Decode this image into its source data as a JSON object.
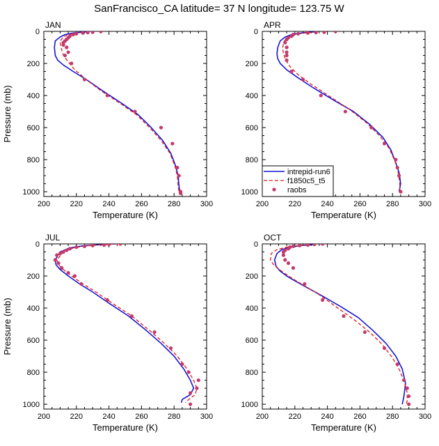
{
  "title": "SanFrancisco_CA  latitude= 37 N longitude= 123.75 W",
  "legend": {
    "entries": [
      {
        "label": "intrepid-run6",
        "color": "#1414d4",
        "style": "solid"
      },
      {
        "label": "f1850c5_t5",
        "color": "#e01818",
        "style": "dashed"
      },
      {
        "label": "raobs",
        "color": "#c23a6b",
        "style": "dots"
      }
    ]
  },
  "chart_data": [
    {
      "type": "line",
      "panel": "JAN",
      "xlabel": "Temperature (K)",
      "ylabel": "Pressure (mb)",
      "xlim": [
        200,
        300
      ],
      "ylim": [
        0,
        1030
      ],
      "y_inverted": true,
      "xticks": [
        200,
        220,
        240,
        260,
        280,
        300
      ],
      "yticks": [
        0,
        200,
        400,
        600,
        800,
        1000
      ],
      "series": [
        {
          "name": "intrepid-run6",
          "x": [
            226,
            218,
            213,
            210,
            207,
            206.5,
            207,
            208.5,
            212,
            218,
            226,
            236,
            248,
            258,
            266,
            273,
            278,
            281,
            282.5,
            283,
            283.5
          ],
          "y": [
            3,
            10,
            20,
            35,
            60,
            100,
            150,
            180,
            210,
            250,
            300,
            370,
            450,
            520,
            600,
            680,
            760,
            840,
            900,
            960,
            1000
          ]
        },
        {
          "name": "f1850c5_t5",
          "x": [
            228,
            220,
            215,
            212,
            210,
            210.5,
            212,
            215,
            219,
            226,
            235,
            247,
            257,
            265,
            272,
            277.5,
            280.5,
            282,
            282.5,
            283
          ],
          "y": [
            3,
            10,
            20,
            35,
            60,
            100,
            150,
            190,
            240,
            300,
            370,
            450,
            520,
            600,
            680,
            760,
            840,
            900,
            960,
            1000
          ]
        },
        {
          "name": "raobs",
          "x": [
            235,
            230,
            227,
            224,
            220,
            218,
            216,
            215,
            214,
            213,
            212,
            212,
            214,
            215,
            213,
            217,
            225,
            239,
            256,
            272,
            279,
            282,
            283,
            284,
            284
          ],
          "y": [
            0,
            5,
            7,
            10,
            15,
            20,
            30,
            40,
            50,
            60,
            70,
            85,
            100,
            130,
            150,
            200,
            300,
            400,
            500,
            600,
            700,
            850,
            900,
            1000,
            1010
          ]
        }
      ]
    },
    {
      "type": "line",
      "panel": "APR",
      "xlabel": "Temperature (K)",
      "ylabel": "",
      "xlim": [
        200,
        300
      ],
      "ylim": [
        0,
        1030
      ],
      "y_inverted": true,
      "xticks": [
        200,
        220,
        240,
        260,
        280,
        300
      ],
      "yticks": [
        0,
        200,
        400,
        600,
        800,
        1000
      ],
      "series": [
        {
          "name": "intrepid-run6",
          "x": [
            232,
            224,
            218,
            214,
            211,
            209.5,
            209,
            209.5,
            211,
            215,
            222,
            231,
            244,
            256,
            266,
            274,
            279,
            282,
            284,
            285,
            284
          ],
          "y": [
            3,
            10,
            20,
            35,
            60,
            100,
            140,
            170,
            200,
            240,
            290,
            350,
            430,
            500,
            580,
            660,
            740,
            820,
            880,
            950,
            1000
          ]
        },
        {
          "name": "f1850c5_t5",
          "x": [
            234,
            226,
            220,
            216,
            213.5,
            212.5,
            213,
            214.5,
            217,
            222,
            230,
            242,
            254,
            264,
            272,
            278,
            281.5,
            283.5,
            284.5,
            284.5
          ],
          "y": [
            3,
            10,
            20,
            35,
            60,
            100,
            140,
            180,
            220,
            270,
            330,
            410,
            490,
            570,
            650,
            730,
            810,
            880,
            950,
            1000
          ]
        },
        {
          "name": "raobs",
          "x": [
            245,
            238,
            233,
            228,
            222,
            219,
            218,
            216,
            215,
            214,
            215,
            215,
            215,
            215,
            218,
            225,
            236,
            251,
            267,
            275,
            282,
            283,
            284,
            285
          ],
          "y": [
            0,
            5,
            7,
            10,
            15,
            20,
            30,
            40,
            50,
            70,
            100,
            130,
            150,
            180,
            250,
            300,
            400,
            500,
            600,
            700,
            800,
            850,
            900,
            1000
          ]
        }
      ]
    },
    {
      "type": "line",
      "panel": "JUL",
      "xlabel": "Temperature (K)",
      "ylabel": "Pressure (mb)",
      "xlim": [
        200,
        300
      ],
      "ylim": [
        0,
        1030
      ],
      "y_inverted": true,
      "xticks": [
        200,
        220,
        240,
        260,
        280,
        300
      ],
      "yticks": [
        0,
        200,
        400,
        600,
        800,
        1000
      ],
      "series": [
        {
          "name": "intrepid-run6",
          "x": [
            244,
            234,
            224,
            216,
            210,
            207,
            207.5,
            210,
            215,
            222,
            230,
            240,
            252,
            263,
            272,
            280,
            286,
            290,
            292,
            290,
            285,
            284.5
          ],
          "y": [
            0,
            5,
            12,
            25,
            50,
            100,
            130,
            160,
            200,
            250,
            300,
            370,
            450,
            540,
            620,
            700,
            780,
            850,
            900,
            940,
            970,
            990
          ]
        },
        {
          "name": "f1850c5_t5",
          "x": [
            246,
            236,
            226,
            218,
            212,
            208,
            209,
            212,
            217,
            224,
            232,
            242,
            254,
            265,
            274,
            282,
            288,
            292,
            294,
            293,
            289,
            287
          ],
          "y": [
            0,
            5,
            12,
            25,
            50,
            100,
            130,
            160,
            200,
            250,
            300,
            370,
            450,
            540,
            620,
            700,
            780,
            850,
            900,
            940,
            970,
            990
          ]
        },
        {
          "name": "raobs",
          "x": [
            247,
            240,
            237,
            230,
            225,
            220,
            216,
            214,
            212,
            210,
            208,
            207,
            209,
            211,
            215,
            219,
            223,
            239,
            254,
            268,
            278,
            285,
            289,
            295,
            294,
            290,
            290
          ],
          "y": [
            0,
            3,
            7,
            10,
            15,
            20,
            30,
            40,
            50,
            60,
            70,
            100,
            120,
            150,
            180,
            200,
            250,
            350,
            450,
            550,
            650,
            750,
            800,
            850,
            900,
            930,
            1000
          ]
        }
      ]
    },
    {
      "type": "line",
      "panel": "OCT",
      "xlabel": "Temperature (K)",
      "ylabel": "",
      "xlim": [
        200,
        300
      ],
      "ylim": [
        0,
        1030
      ],
      "y_inverted": true,
      "xticks": [
        200,
        220,
        240,
        260,
        280,
        300
      ],
      "yticks": [
        0,
        200,
        400,
        600,
        800,
        1000
      ],
      "series": [
        {
          "name": "intrepid-run6",
          "x": [
            233,
            224,
            217,
            212,
            209,
            207.5,
            208.5,
            211,
            215,
            220,
            227,
            236,
            248,
            259,
            268,
            276,
            282,
            286,
            288,
            287,
            286
          ],
          "y": [
            3,
            10,
            20,
            35,
            60,
            100,
            140,
            170,
            200,
            230,
            270,
            320,
            390,
            460,
            540,
            620,
            700,
            780,
            870,
            950,
            1000
          ]
        },
        {
          "name": "f1850c5_t5",
          "x": [
            233,
            223,
            215,
            209,
            205.5,
            205,
            207,
            210.5,
            216,
            224,
            234,
            245,
            256,
            266,
            274,
            280,
            284.5,
            287.5,
            289,
            289,
            288
          ],
          "y": [
            3,
            10,
            20,
            35,
            60,
            100,
            130,
            160,
            200,
            250,
            310,
            390,
            470,
            550,
            630,
            710,
            790,
            870,
            930,
            980,
            1010
          ]
        },
        {
          "name": "raobs",
          "x": [
            237,
            232,
            228,
            223,
            219,
            217,
            216,
            214,
            213,
            213,
            214,
            216,
            219,
            226,
            237,
            250,
            263,
            275,
            283,
            287,
            289,
            290,
            290
          ],
          "y": [
            0,
            3,
            7,
            10,
            15,
            20,
            30,
            40,
            50,
            70,
            100,
            120,
            150,
            250,
            350,
            450,
            550,
            650,
            750,
            850,
            900,
            950,
            1000
          ]
        }
      ]
    }
  ]
}
